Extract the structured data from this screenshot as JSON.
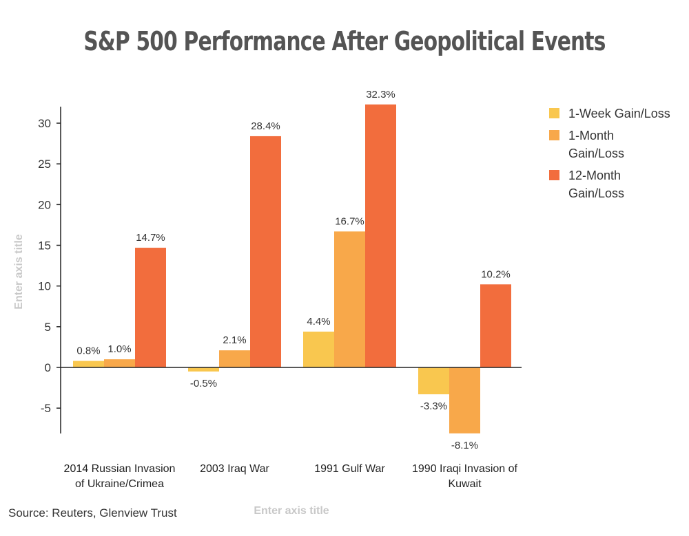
{
  "chart_data": {
    "type": "bar",
    "title": "S&P 500 Performance After Geopolitical Events",
    "xlabel": "Enter axis title",
    "ylabel": "Enter axis title",
    "categories": [
      [
        "2014 Russian Invasion",
        "of Ukraine/Crimea"
      ],
      [
        "2003 Iraq War"
      ],
      [
        "1991 Gulf War"
      ],
      [
        "1990 Iraqi Invasion of",
        "Kuwait"
      ]
    ],
    "series": [
      {
        "name": "1-Week Gain/Loss",
        "color": "#f9c74f",
        "values": [
          0.8,
          -0.5,
          4.4,
          -3.3
        ],
        "labels": [
          "0.8%",
          "-0.5%",
          "4.4%",
          "-3.3%"
        ]
      },
      {
        "name": "1-Month Gain/Loss",
        "color": "#f8a84a",
        "values": [
          1.0,
          2.1,
          16.7,
          -8.1
        ],
        "labels": [
          "1.0%",
          "2.1%",
          "16.7%",
          "-8.1%"
        ]
      },
      {
        "name": "12-Month Gain/Loss",
        "color": "#f26d3d",
        "values": [
          14.7,
          28.4,
          32.3,
          10.2
        ],
        "labels": [
          "14.7%",
          "28.4%",
          "32.3%",
          "10.2%"
        ]
      }
    ],
    "yticks": [
      -5,
      0,
      5,
      10,
      15,
      20,
      25,
      30
    ],
    "ylim": [
      -8,
      32.3
    ],
    "legend_position": "right",
    "grid": false
  },
  "source": "Source: Reuters, Glenview Trust"
}
